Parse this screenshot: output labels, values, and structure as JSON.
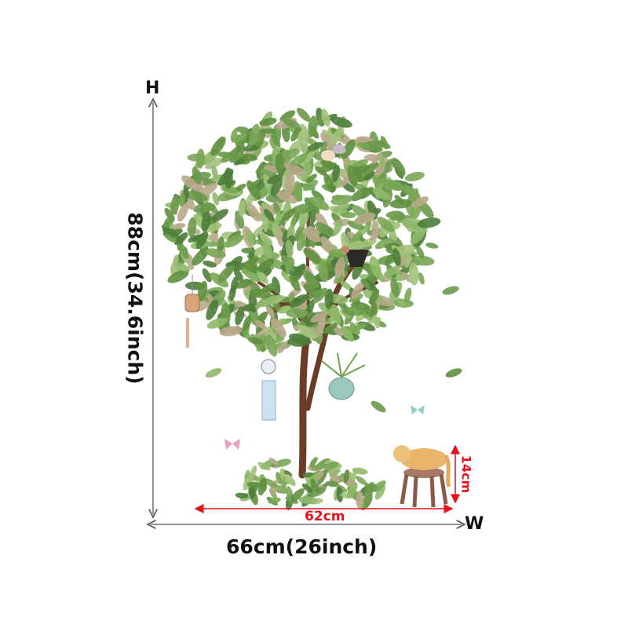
{
  "dimensions": {
    "height_letter": "H",
    "width_letter": "W",
    "height_label": "88cm(34.6inch)",
    "width_label": "66cm(26inch)",
    "leaf_span_label": "62cm",
    "stool_height_label": "14cm"
  },
  "colors": {
    "measure_line": "#555555",
    "accent_measure": "#e8101c",
    "leaf": "#6f9c4a",
    "trunk": "#6b3d26"
  }
}
